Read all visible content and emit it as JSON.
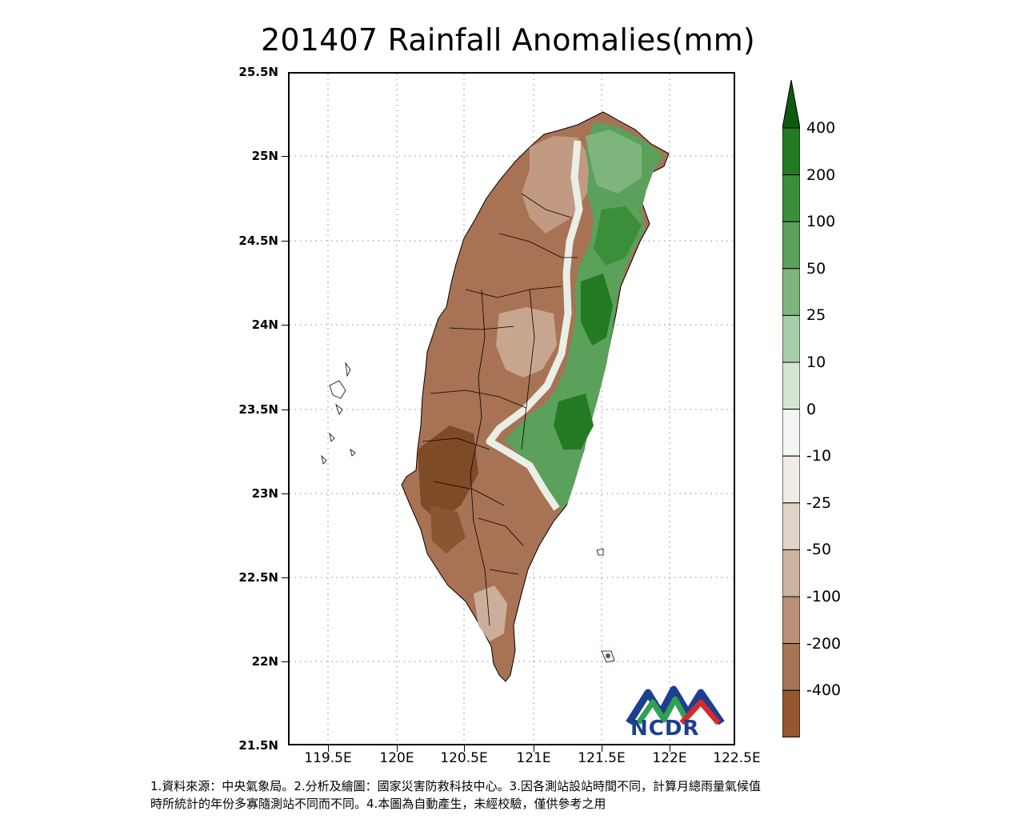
{
  "title": "201407 Rainfall Anomalies(mm)",
  "lat_labels": [
    "25.5N",
    "25N",
    "24.5N",
    "24N",
    "23.5N",
    "23N",
    "22.5N",
    "22N",
    "21.5N"
  ],
  "lon_labels": [
    "119.5E",
    "120E",
    "120.5E",
    "121E",
    "121.5E",
    "122E",
    "122.5E"
  ],
  "colorbar": {
    "labels": [
      "400",
      "200",
      "100",
      "50",
      "25",
      "10",
      "0",
      "-10",
      "-25",
      "-50",
      "-100",
      "-200",
      "-400"
    ],
    "colors": [
      "#0f5a0f",
      "#227b22",
      "#3b8f3b",
      "#5ba05b",
      "#7db57d",
      "#a8cca8",
      "#d4e5d4",
      "#f3f6f2",
      "#f1ebe6",
      "#e2d3c8",
      "#cfb3a1",
      "#b98f78",
      "#a67555",
      "#94572f",
      "#7d3f12"
    ]
  },
  "map_data": {
    "region": "Taiwan",
    "variable": "Rainfall Anomalies",
    "unit": "mm",
    "period": "201407",
    "lat_range": [
      21.5,
      25.5
    ],
    "lon_range": [
      119.2,
      122.5
    ]
  },
  "logo_text": "NCDR",
  "notes": [
    "1.資料來源：中央氣象局。2.分析及繪圖：國家災害防救科技中心。3.因各測站設站時間不同，計算月總雨量氣候值",
    "時所統計的年份多寡隨測站不同而不同。4.本圖為自動產生，未經校驗，僅供參考之用"
  ]
}
